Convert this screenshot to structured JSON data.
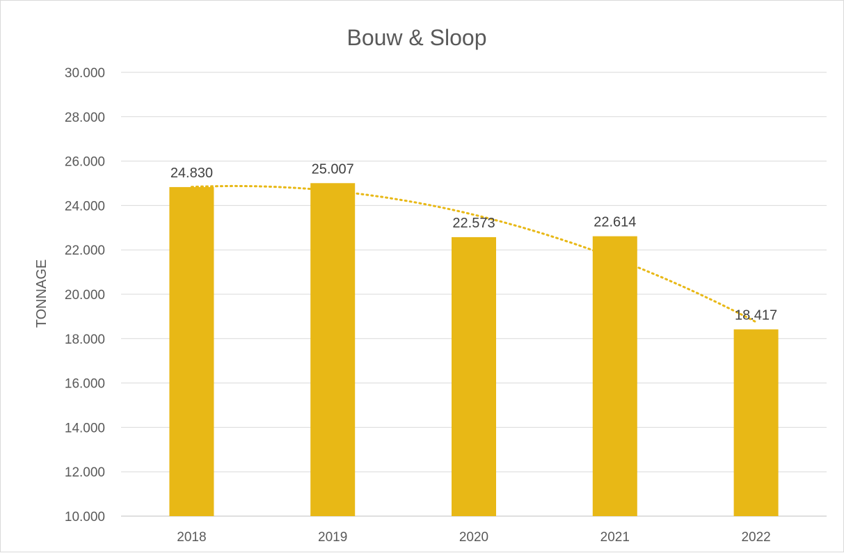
{
  "chart_data": {
    "type": "bar",
    "title": "Bouw & Sloop",
    "xlabel": "",
    "ylabel": "TONNAGE",
    "categories": [
      "2018",
      "2019",
      "2020",
      "2021",
      "2022"
    ],
    "values": [
      24830,
      25007,
      22573,
      22614,
      18417
    ],
    "value_labels": [
      "24.830",
      "25.007",
      "22.573",
      "22.614",
      "18.417"
    ],
    "ylim": [
      10000,
      30000
    ],
    "yticks": [
      10000,
      12000,
      14000,
      16000,
      18000,
      20000,
      22000,
      24000,
      26000,
      28000,
      30000
    ],
    "ytick_labels": [
      "10.000",
      "12.000",
      "14.000",
      "16.000",
      "18.000",
      "20.000",
      "22.000",
      "24.000",
      "26.000",
      "28.000",
      "30.000"
    ],
    "grid": true,
    "legend": "none",
    "trendline": {
      "type": "polynomial",
      "style": "dotted"
    },
    "colors": {
      "bar": "#E8B816",
      "trendline": "#E8B816",
      "text": "#595959",
      "grid": "#D9D9D9"
    }
  }
}
